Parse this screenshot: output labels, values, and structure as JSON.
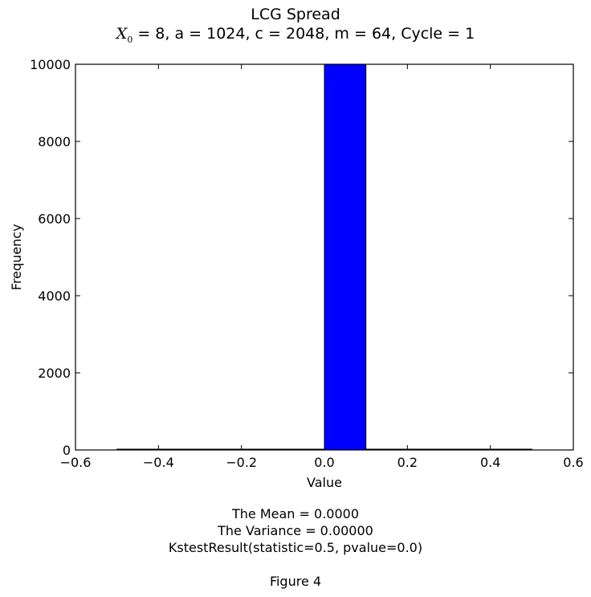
{
  "chart_data": {
    "type": "bar",
    "title": "LCG Spread",
    "subtitle": {
      "symbol": "X",
      "symbol_sub": "0",
      "rest": " = 8, a = 1024, c = 2048, m = 64, Cycle = 1"
    },
    "xlabel": "Value",
    "ylabel": "Frequency",
    "xlim": [
      -0.6,
      0.6
    ],
    "ylim": [
      0,
      10000
    ],
    "xticks": [
      "−0.6",
      "−0.4",
      "−0.2",
      "0.0",
      "0.2",
      "0.4",
      "0.6"
    ],
    "xtick_values": [
      -0.6,
      -0.4,
      -0.2,
      0.0,
      0.2,
      0.4,
      0.6
    ],
    "yticks": [
      "0",
      "2000",
      "4000",
      "6000",
      "8000",
      "10000"
    ],
    "ytick_values": [
      0,
      2000,
      4000,
      6000,
      8000,
      10000
    ],
    "bars": [
      {
        "x0": -0.5,
        "x1": -0.4,
        "value": 0
      },
      {
        "x0": -0.4,
        "x1": -0.3,
        "value": 0
      },
      {
        "x0": -0.3,
        "x1": -0.2,
        "value": 0
      },
      {
        "x0": -0.2,
        "x1": -0.1,
        "value": 0
      },
      {
        "x0": -0.1,
        "x1": 0.0,
        "value": 0
      },
      {
        "x0": 0.0,
        "x1": 0.1,
        "value": 10000
      },
      {
        "x0": 0.1,
        "x1": 0.2,
        "value": 0
      },
      {
        "x0": 0.2,
        "x1": 0.3,
        "value": 0
      },
      {
        "x0": 0.3,
        "x1": 0.4,
        "value": 0
      },
      {
        "x0": 0.4,
        "x1": 0.5,
        "value": 0
      }
    ],
    "bar_color": "#0000ff",
    "grid": false
  },
  "captions": {
    "mean": "The Mean = 0.0000",
    "variance": "The Variance = 0.00000",
    "kstest": "KstestResult(statistic=0.5, pvalue=0.0)",
    "figure": "Figure 4"
  }
}
